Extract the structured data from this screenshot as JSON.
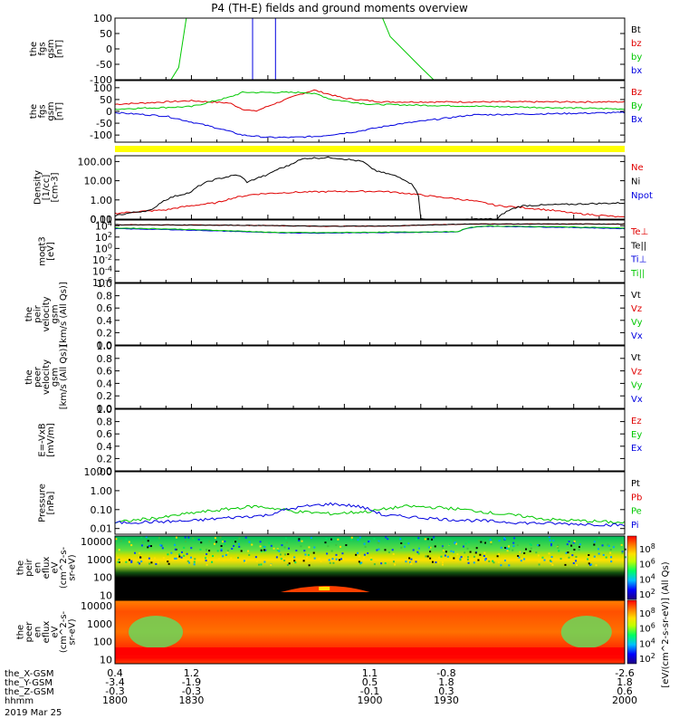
{
  "title": "P4 (TH-E) fields and ground moments overview",
  "date": "2019 Mar 25",
  "axis_rows": [
    {
      "label": "the_X-GSM",
      "values": [
        "0.4",
        "1.2",
        "1.1",
        "-0.8",
        "-2.6"
      ]
    },
    {
      "label": "the_Y-GSM",
      "values": [
        "-3.4",
        "-1.9",
        "0.5",
        "1.8",
        "1.8"
      ]
    },
    {
      "label": "the_Z-GSM",
      "values": [
        "-0.3",
        "-0.3",
        "-0.1",
        "0.3",
        "0.6"
      ]
    },
    {
      "label": "hhmm",
      "values": [
        "1800",
        "1830",
        "1900",
        "1930",
        "2000"
      ]
    }
  ],
  "colorbar_label": "[eV/(cm^2-s-sr-eV)] (All Qs)",
  "colorbar_ticks_1": [
    "10^8",
    "10^6",
    "10^4",
    "10^2"
  ],
  "colorbar_ticks_2": [
    "10^8",
    "10^6",
    "10^4",
    "10^2"
  ],
  "colors": {
    "black": "#000000",
    "red": "#e00000",
    "green": "#00c800",
    "blue": "#0000e0",
    "yellow": "#ffff00"
  },
  "chart_data": [
    {
      "type": "line",
      "panel": "fgs",
      "ylabel": [
        "the",
        "fgs",
        "gsm",
        "[nT]"
      ],
      "ylim": [
        -100,
        100
      ],
      "yticks": [
        "100",
        "50",
        "0",
        "-50",
        "-100"
      ],
      "series": [
        {
          "name": "Bt",
          "color": "black"
        },
        {
          "name": "bz",
          "color": "red"
        },
        {
          "name": "by",
          "color": "green",
          "x": [
            1800,
            1822,
            1825,
            1828,
            1862,
            1886,
            1905,
            1908,
            1920,
            1925
          ],
          "y": [
            -100,
            -100,
            -60,
            100,
            100,
            100,
            100,
            40,
            -60,
            -100
          ]
        },
        {
          "name": "bx",
          "color": "blue",
          "x": [
            1854,
            1854,
            1863,
            1863
          ],
          "y": [
            100,
            -100,
            -100,
            100
          ]
        }
      ]
    },
    {
      "type": "line",
      "panel": "fgs",
      "ylabel": [
        "the",
        "fgs",
        "gsm",
        "[nT]"
      ],
      "ylim": [
        -130,
        130
      ],
      "yticks": [
        "100",
        "50",
        "0",
        "-50",
        "-100"
      ],
      "series": [
        {
          "name": "Bz",
          "color": "red",
          "x": [
            1800,
            1830,
            1845,
            1850,
            1855,
            1862,
            1872,
            1878,
            1890,
            1905,
            2000
          ],
          "y": [
            30,
            45,
            35,
            10,
            0,
            30,
            70,
            90,
            55,
            40,
            40
          ]
        },
        {
          "name": "By",
          "color": "green",
          "x": [
            1800,
            1830,
            1845,
            1850,
            1862,
            1875,
            1880,
            1885,
            1900,
            2000
          ],
          "y": [
            10,
            20,
            60,
            80,
            80,
            80,
            70,
            50,
            30,
            10
          ]
        },
        {
          "name": "Bx",
          "color": "blue",
          "x": [
            1800,
            1820,
            1840,
            1850,
            1860,
            1870,
            1880,
            1895,
            1910,
            1940,
            2000
          ],
          "y": [
            -5,
            -20,
            -70,
            -100,
            -110,
            -110,
            -105,
            -85,
            -55,
            -15,
            -5
          ]
        }
      ]
    },
    {
      "type": "line",
      "panel": "Density",
      "ylabel": [
        "Density",
        "[1/cc]",
        "[cm-3]"
      ],
      "ylim": [
        0.1,
        200
      ],
      "yscale": "log",
      "yticks": [
        "100.00",
        "10.00",
        "1.00",
        "0.10",
        "0.01"
      ],
      "series": [
        {
          "name": "Ne",
          "color": "red",
          "x": [
            1800,
            1820,
            1840,
            1855,
            1870,
            1890,
            1905,
            1925,
            1950,
            1980,
            2000
          ],
          "y": [
            0.2,
            0.3,
            0.7,
            2.0,
            2.5,
            2.8,
            2.8,
            1.5,
            0.5,
            0.2,
            0.12
          ]
        },
        {
          "name": "Ni",
          "color": "black",
          "x": [
            1800,
            1815,
            1830,
            1843,
            1848,
            1852,
            1860,
            1868,
            1875,
            1885,
            1897,
            1900,
            1903,
            1920,
            1935,
            1940,
            1950,
            1960,
            2000
          ],
          "y": [
            0.15,
            0.3,
            2.5,
            15,
            20,
            8,
            20,
            60,
            150,
            160,
            100,
            50,
            30,
            0.1,
            0.08,
            0.1,
            0.1,
            0.5,
            0.7
          ]
        },
        {
          "name": "Npot",
          "color": "blue"
        }
      ]
    },
    {
      "type": "line",
      "panel": "moqt3",
      "ylabel": [
        "moqt3",
        "[eV]"
      ],
      "ylim": [
        1e-06,
        100000.0
      ],
      "yscale": "log",
      "yticks": [
        "10^4",
        "10^2",
        "10^0",
        "10^-2",
        "10^-4",
        "10^-6"
      ],
      "series": [
        {
          "name": "Te⊥",
          "color": "red",
          "x": [
            1800,
            1850,
            1880,
            1910,
            1940,
            2000
          ],
          "y": [
            15000,
            12000,
            8000,
            9000,
            20000,
            20000
          ]
        },
        {
          "name": "Te||",
          "color": "black",
          "x": [
            1800,
            1850,
            1880,
            1910,
            1940,
            2000
          ],
          "y": [
            15000,
            12000,
            8000,
            9000,
            20000,
            20000
          ]
        },
        {
          "name": "Ti⊥",
          "color": "blue",
          "x": [
            1800,
            1840,
            1860,
            1880,
            1900,
            1935,
            1945,
            2000
          ],
          "y": [
            3000,
            1200,
            600,
            500,
            600,
            800,
            8000,
            3000
          ]
        },
        {
          "name": "Ti||",
          "color": "green",
          "x": [
            1800,
            1840,
            1860,
            1880,
            1900,
            1935,
            1945,
            2000
          ],
          "y": [
            4000,
            1500,
            700,
            600,
            700,
            900,
            9000,
            4000
          ]
        }
      ]
    },
    {
      "type": "line",
      "panel": "peir velocity",
      "ylabel": [
        "the",
        "peir",
        "velocity",
        "gsm",
        "[km/s (All Qs)]"
      ],
      "ylim": [
        0,
        1
      ],
      "yticks": [
        "1.0",
        "0.8",
        "0.6",
        "0.4",
        "0.2",
        "0.0"
      ],
      "series": [
        {
          "name": "Vt",
          "color": "black"
        },
        {
          "name": "Vz",
          "color": "red"
        },
        {
          "name": "Vy",
          "color": "green"
        },
        {
          "name": "Vx",
          "color": "blue"
        }
      ]
    },
    {
      "type": "line",
      "panel": "peer velocity",
      "ylabel": [
        "the",
        "peer",
        "velocity",
        "gsm",
        "[km/s (All Qs)]"
      ],
      "ylim": [
        0,
        1
      ],
      "yticks": [
        "1.0",
        "0.8",
        "0.6",
        "0.4",
        "0.2",
        "0.0"
      ],
      "series": [
        {
          "name": "Vt",
          "color": "black"
        },
        {
          "name": "Vz",
          "color": "red"
        },
        {
          "name": "Vy",
          "color": "green"
        },
        {
          "name": "Vx",
          "color": "blue"
        }
      ]
    },
    {
      "type": "line",
      "panel": "E=-VxB",
      "ylabel": [
        "E=-VxB",
        "[mV/m]"
      ],
      "ylim": [
        0,
        1
      ],
      "yticks": [
        "1.0",
        "0.8",
        "0.6",
        "0.4",
        "0.2",
        "0.0"
      ],
      "series": [
        {
          "name": "Ez",
          "color": "red"
        },
        {
          "name": "Ey",
          "color": "green"
        },
        {
          "name": "Ex",
          "color": "blue"
        }
      ]
    },
    {
      "type": "line",
      "panel": "Pressure",
      "ylabel": [
        "Pressure",
        "[nPa]"
      ],
      "ylim": [
        0.005,
        10
      ],
      "yscale": "log",
      "yticks": [
        "10.00",
        "1.00",
        "0.10",
        "0.01"
      ],
      "series": [
        {
          "name": "Pt",
          "color": "black"
        },
        {
          "name": "Pb",
          "color": "red"
        },
        {
          "name": "Pe",
          "color": "green",
          "x": [
            1800,
            1820,
            1840,
            1855,
            1870,
            1885,
            1900,
            1915,
            1930,
            1950,
            1970,
            2000
          ],
          "y": [
            0.02,
            0.04,
            0.09,
            0.15,
            0.08,
            0.06,
            0.08,
            0.15,
            0.12,
            0.06,
            0.03,
            0.02
          ]
        },
        {
          "name": "Pi",
          "color": "blue",
          "x": [
            1800,
            1830,
            1860,
            1875,
            1885,
            1895,
            1905,
            1930,
            1960,
            2000
          ],
          "y": [
            0.02,
            0.025,
            0.05,
            0.15,
            0.2,
            0.15,
            0.05,
            0.03,
            0.02,
            0.015
          ]
        }
      ]
    },
    {
      "type": "heatmap",
      "panel": "peir en eflux",
      "ylabel": [
        "the",
        "peir",
        "en",
        "eflux",
        "eV",
        "(cm^2-s-",
        "sr-eV)"
      ],
      "ylim": [
        6,
        20000
      ],
      "yscale": "log",
      "yticks": [
        "10000",
        "1000",
        "100",
        "10"
      ]
    },
    {
      "type": "heatmap",
      "panel": "peer en eflux",
      "ylabel": [
        "the",
        "peer",
        "en",
        "eflux",
        "eV",
        "(cm^2-s-",
        "sr-eV)"
      ],
      "ylim": [
        6,
        20000
      ],
      "yscale": "log",
      "yticks": [
        "10000",
        "1000",
        "100",
        "10"
      ]
    }
  ]
}
